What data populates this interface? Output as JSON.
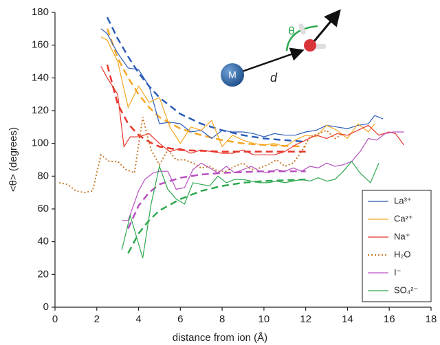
{
  "chart_data": {
    "type": "line",
    "x_label": "distance from ion (Å)",
    "y_label": "<θ> (degrees)",
    "xlim": [
      0,
      18
    ],
    "xticks": [
      0,
      2,
      4,
      6,
      8,
      10,
      12,
      14,
      16,
      18
    ],
    "ylim": [
      0,
      180
    ],
    "yticks": [
      0,
      20,
      40,
      60,
      80,
      100,
      120,
      140,
      160,
      180
    ],
    "legend_position": "lower right",
    "series": [
      {
        "name": "La³⁺",
        "color": "#2b5cb8",
        "dash": "solid",
        "x": [
          2.2,
          2.5,
          3,
          3.5,
          4,
          4.5,
          5,
          5.5,
          6,
          6.5,
          7,
          7.5,
          8,
          8.5,
          9,
          9.5,
          10,
          10.5,
          11,
          11.5,
          12,
          12.5,
          13,
          13.5,
          14,
          14.5,
          15,
          15.3,
          15.7
        ],
        "values": [
          170,
          167,
          155,
          146,
          145,
          135,
          112,
          113,
          112,
          107,
          108,
          103,
          108,
          107,
          107,
          106,
          104,
          106,
          105,
          105,
          107,
          108,
          111,
          110,
          109,
          111,
          112,
          117,
          115
        ]
      },
      {
        "name": "Ca²⁺",
        "color": "#f5a623",
        "dash": "solid",
        "x": [
          2.2,
          2.5,
          3,
          3.5,
          4,
          4.5,
          5,
          5.5,
          6,
          6.5,
          7,
          7.5,
          8,
          8.5,
          9,
          9.5,
          10,
          10.5,
          11,
          11.5,
          12,
          12.5,
          13,
          13.5,
          14,
          14.5,
          15,
          15.3
        ],
        "values": [
          165,
          163,
          150,
          122,
          135,
          125,
          128,
          110,
          100,
          110,
          108,
          114,
          98,
          105,
          102,
          100,
          99,
          100,
          98,
          102,
          105,
          104,
          111,
          108,
          103,
          112,
          107,
          112
        ]
      },
      {
        "name": "Na⁺",
        "color": "#e8352a",
        "dash": "solid",
        "x": [
          2.2,
          2.5,
          3,
          3.3,
          3.6,
          4,
          4.5,
          5,
          5.5,
          6,
          6.5,
          7,
          7.5,
          8,
          8.5,
          9,
          9.5,
          10,
          10.5,
          11,
          11.5,
          12,
          12.5,
          13,
          13.5,
          14,
          14.5,
          15,
          15.5,
          16,
          16.3,
          16.7
        ],
        "values": [
          147,
          140,
          130,
          98,
          104,
          104,
          106,
          100,
          95,
          97,
          94,
          96,
          95,
          94,
          94,
          96,
          93,
          93,
          93,
          95,
          99,
          102,
          105,
          103,
          106,
          105,
          108,
          111,
          105,
          107,
          106,
          99
        ]
      },
      {
        "name": "H₂O",
        "color": "#c97a2c",
        "dash": "dotted",
        "x": [
          0.2,
          0.6,
          1,
          1.4,
          1.8,
          2.2,
          2.6,
          3,
          3.4,
          3.8,
          4.2,
          4.6,
          5,
          5.4,
          5.8,
          6.2,
          6.6,
          7,
          7.4,
          7.8,
          8.2,
          8.6,
          9,
          9.4,
          9.8,
          10.2,
          10.6,
          11,
          11.4,
          11.8,
          12.2,
          12.6,
          13,
          13.4,
          13.8
        ],
        "values": [
          76,
          75,
          71,
          70,
          71,
          93,
          89,
          89,
          84,
          82,
          116,
          96,
          87,
          96,
          90,
          90,
          88,
          85,
          86,
          83,
          83,
          86,
          88,
          84,
          85,
          87,
          90,
          86,
          88,
          95,
          104,
          106,
          108,
          103,
          106
        ]
      },
      {
        "name": "I⁻",
        "color": "#b84fc0",
        "dash": "solid",
        "x": [
          3.2,
          3.5,
          4,
          4.3,
          4.7,
          5,
          5.4,
          5.8,
          6.2,
          6.6,
          7,
          7.4,
          7.8,
          8.2,
          8.6,
          9,
          9.4,
          9.8,
          10.2,
          10.6,
          11,
          11.4,
          11.8,
          12.2,
          12.6,
          13,
          13.4,
          13.8,
          14.2,
          14.6,
          15,
          15.4,
          15.8,
          16.2,
          16.7
        ],
        "values": [
          53,
          53,
          71,
          78,
          82,
          83,
          83,
          72,
          73,
          84,
          88,
          85,
          82,
          86,
          82,
          84,
          86,
          83,
          82,
          84,
          83,
          85,
          83,
          86,
          85,
          88,
          86,
          87,
          89,
          95,
          103,
          102,
          106,
          107,
          107
        ]
      },
      {
        "name": "SO₄²⁻",
        "color": "#2ea84f",
        "dash": "solid",
        "x": [
          3.2,
          3.6,
          4.2,
          4.6,
          5,
          5.4,
          5.8,
          6.2,
          6.6,
          7,
          7.4,
          7.8,
          8.2,
          8.6,
          9,
          9.4,
          9.8,
          10.2,
          10.6,
          11,
          11.4,
          11.8,
          12.2,
          12.6,
          13,
          13.4,
          13.8,
          14.2,
          14.6,
          15.1,
          15.5
        ],
        "values": [
          35,
          56,
          30,
          63,
          86,
          72,
          66,
          63,
          76,
          75,
          74,
          80,
          76,
          78,
          78,
          77,
          76,
          76,
          77,
          76,
          77,
          78,
          77,
          79,
          77,
          78,
          83,
          89,
          82,
          76,
          88
        ]
      }
    ],
    "fits": [
      {
        "color": "#2b5cb8",
        "x": [
          2.5,
          3,
          3.5,
          4,
          4.5,
          5,
          6,
          7,
          8,
          9,
          10,
          11,
          12
        ],
        "values": [
          177,
          164,
          153,
          143,
          135,
          128,
          118,
          112,
          108,
          105,
          103,
          102,
          101
        ]
      },
      {
        "color": "#f5a623",
        "x": [
          2.5,
          3,
          3.5,
          4,
          4.5,
          5,
          6,
          7,
          8,
          9,
          10,
          11,
          12
        ],
        "values": [
          170,
          152,
          140,
          130,
          122,
          116,
          109,
          105,
          102,
          100,
          99,
          98.5,
          98
        ]
      },
      {
        "color": "#e8352a",
        "x": [
          2.5,
          3,
          3.5,
          4,
          4.5,
          5,
          6,
          7,
          8,
          9,
          10,
          11,
          12
        ],
        "values": [
          148,
          124,
          112,
          105,
          101,
          98,
          96,
          95.5,
          95,
          95,
          95,
          95,
          95
        ]
      },
      {
        "color": "#b84fc0",
        "x": [
          3.5,
          4,
          4.5,
          5,
          6,
          7,
          8,
          9,
          10,
          11,
          12
        ],
        "values": [
          48,
          62,
          70,
          75,
          79,
          81,
          82,
          82.5,
          83,
          83,
          83
        ]
      },
      {
        "color": "#2ea84f",
        "x": [
          3.5,
          4,
          4.5,
          5,
          6,
          7,
          8,
          9,
          10,
          11,
          12
        ],
        "values": [
          33,
          45,
          53,
          59,
          66,
          71,
          74,
          76,
          77,
          77.5,
          78
        ]
      }
    ],
    "annotations": {
      "ion": "M",
      "distance": "d",
      "angle": "θ"
    }
  }
}
